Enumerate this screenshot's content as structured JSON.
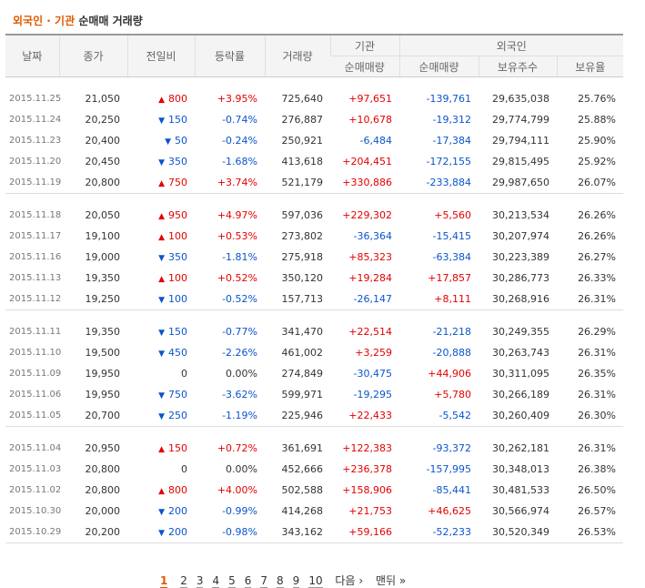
{
  "title": {
    "part1": "외국인 · 기관",
    "part2": "순매매 거래량"
  },
  "headers": {
    "date": "날짜",
    "close": "종가",
    "change": "전일비",
    "rate": "등락률",
    "volume": "거래량",
    "inst_group": "기관",
    "foreign_group": "외국인",
    "inst_net": "순매매량",
    "foreign_net": "순매매량",
    "holdings": "보유주수",
    "ratio": "보유율"
  },
  "colors": {
    "up": "#e40000",
    "down": "#0a55cc",
    "accent": "#e15a00"
  },
  "groups": [
    [
      {
        "date": "2015.11.25",
        "close": "21,050",
        "dir": "up",
        "change": "800",
        "rate": "+3.95%",
        "volume": "725,640",
        "inst": "+97,651",
        "foreign": "-139,761",
        "holdings": "29,635,038",
        "ratio": "25.76%"
      },
      {
        "date": "2015.11.24",
        "close": "20,250",
        "dir": "down",
        "change": "150",
        "rate": "-0.74%",
        "volume": "276,887",
        "inst": "+10,678",
        "foreign": "-19,312",
        "holdings": "29,774,799",
        "ratio": "25.88%"
      },
      {
        "date": "2015.11.23",
        "close": "20,400",
        "dir": "down",
        "change": "50",
        "rate": "-0.24%",
        "volume": "250,921",
        "inst": "-6,484",
        "foreign": "-17,384",
        "holdings": "29,794,111",
        "ratio": "25.90%"
      },
      {
        "date": "2015.11.20",
        "close": "20,450",
        "dir": "down",
        "change": "350",
        "rate": "-1.68%",
        "volume": "413,618",
        "inst": "+204,451",
        "foreign": "-172,155",
        "holdings": "29,815,495",
        "ratio": "25.92%"
      },
      {
        "date": "2015.11.19",
        "close": "20,800",
        "dir": "up",
        "change": "750",
        "rate": "+3.74%",
        "volume": "521,179",
        "inst": "+330,886",
        "foreign": "-233,884",
        "holdings": "29,987,650",
        "ratio": "26.07%"
      }
    ],
    [
      {
        "date": "2015.11.18",
        "close": "20,050",
        "dir": "up",
        "change": "950",
        "rate": "+4.97%",
        "volume": "597,036",
        "inst": "+229,302",
        "foreign": "+5,560",
        "holdings": "30,213,534",
        "ratio": "26.26%"
      },
      {
        "date": "2015.11.17",
        "close": "19,100",
        "dir": "up",
        "change": "100",
        "rate": "+0.53%",
        "volume": "273,802",
        "inst": "-36,364",
        "foreign": "-15,415",
        "holdings": "30,207,974",
        "ratio": "26.26%"
      },
      {
        "date": "2015.11.16",
        "close": "19,000",
        "dir": "down",
        "change": "350",
        "rate": "-1.81%",
        "volume": "275,918",
        "inst": "+85,323",
        "foreign": "-63,384",
        "holdings": "30,223,389",
        "ratio": "26.27%"
      },
      {
        "date": "2015.11.13",
        "close": "19,350",
        "dir": "up",
        "change": "100",
        "rate": "+0.52%",
        "volume": "350,120",
        "inst": "+19,284",
        "foreign": "+17,857",
        "holdings": "30,286,773",
        "ratio": "26.33%"
      },
      {
        "date": "2015.11.12",
        "close": "19,250",
        "dir": "down",
        "change": "100",
        "rate": "-0.52%",
        "volume": "157,713",
        "inst": "-26,147",
        "foreign": "+8,111",
        "holdings": "30,268,916",
        "ratio": "26.31%"
      }
    ],
    [
      {
        "date": "2015.11.11",
        "close": "19,350",
        "dir": "down",
        "change": "150",
        "rate": "-0.77%",
        "volume": "341,470",
        "inst": "+22,514",
        "foreign": "-21,218",
        "holdings": "30,249,355",
        "ratio": "26.29%"
      },
      {
        "date": "2015.11.10",
        "close": "19,500",
        "dir": "down",
        "change": "450",
        "rate": "-2.26%",
        "volume": "461,002",
        "inst": "+3,259",
        "foreign": "-20,888",
        "holdings": "30,263,743",
        "ratio": "26.31%"
      },
      {
        "date": "2015.11.09",
        "close": "19,950",
        "dir": "none",
        "change": "0",
        "rate": "0.00%",
        "volume": "274,849",
        "inst": "-30,475",
        "foreign": "+44,906",
        "holdings": "30,311,095",
        "ratio": "26.35%"
      },
      {
        "date": "2015.11.06",
        "close": "19,950",
        "dir": "down",
        "change": "750",
        "rate": "-3.62%",
        "volume": "599,971",
        "inst": "-19,295",
        "foreign": "+5,780",
        "holdings": "30,266,189",
        "ratio": "26.31%"
      },
      {
        "date": "2015.11.05",
        "close": "20,700",
        "dir": "down",
        "change": "250",
        "rate": "-1.19%",
        "volume": "225,946",
        "inst": "+22,433",
        "foreign": "-5,542",
        "holdings": "30,260,409",
        "ratio": "26.30%"
      }
    ],
    [
      {
        "date": "2015.11.04",
        "close": "20,950",
        "dir": "up",
        "change": "150",
        "rate": "+0.72%",
        "volume": "361,691",
        "inst": "+122,383",
        "foreign": "-93,372",
        "holdings": "30,262,181",
        "ratio": "26.31%"
      },
      {
        "date": "2015.11.03",
        "close": "20,800",
        "dir": "none",
        "change": "0",
        "rate": "0.00%",
        "volume": "452,666",
        "inst": "+236,378",
        "foreign": "-157,995",
        "holdings": "30,348,013",
        "ratio": "26.38%"
      },
      {
        "date": "2015.11.02",
        "close": "20,800",
        "dir": "up",
        "change": "800",
        "rate": "+4.00%",
        "volume": "502,588",
        "inst": "+158,906",
        "foreign": "-85,441",
        "holdings": "30,481,533",
        "ratio": "26.50%"
      },
      {
        "date": "2015.10.30",
        "close": "20,000",
        "dir": "down",
        "change": "200",
        "rate": "-0.99%",
        "volume": "414,268",
        "inst": "+21,753",
        "foreign": "+46,625",
        "holdings": "30,566,974",
        "ratio": "26.57%"
      },
      {
        "date": "2015.10.29",
        "close": "20,200",
        "dir": "down",
        "change": "200",
        "rate": "-0.98%",
        "volume": "343,162",
        "inst": "+59,166",
        "foreign": "-52,233",
        "holdings": "30,520,349",
        "ratio": "26.53%"
      }
    ]
  ],
  "pagination": {
    "current": "1",
    "pages": [
      "2",
      "3",
      "4",
      "5",
      "6",
      "7",
      "8",
      "9",
      "10"
    ],
    "next": "다음 ›",
    "last": "맨뒤 »"
  }
}
